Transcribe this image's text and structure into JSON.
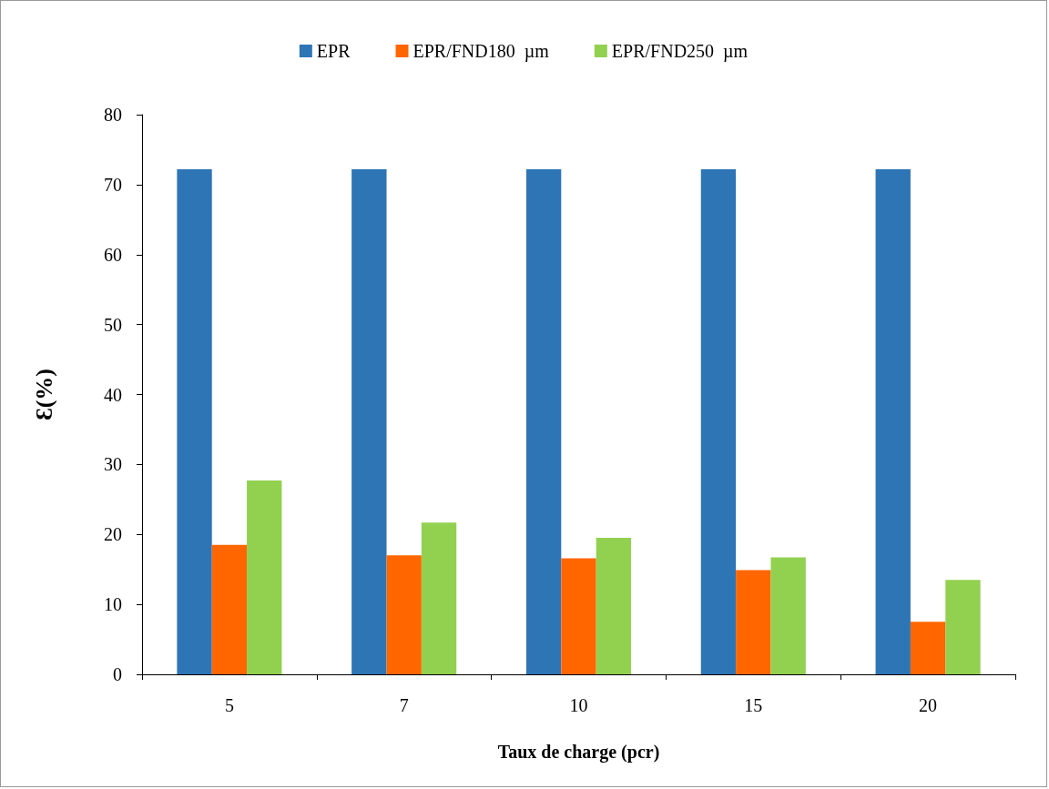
{
  "chart_data": {
    "type": "bar",
    "xlabel": "Taux de charge (pcr)",
    "ylabel": "Ɛ(%)",
    "categories": [
      "5",
      "7",
      "10",
      "15",
      "20"
    ],
    "series": [
      {
        "name": "EPR",
        "color": "#2e75b6",
        "values": [
          72.2,
          72.2,
          72.2,
          72.2,
          72.2
        ]
      },
      {
        "name": "EPR/FND180  µm",
        "color": "#ff6600",
        "values": [
          18.5,
          17.0,
          16.6,
          14.9,
          7.5
        ]
      },
      {
        "name": "EPR/FND250  µm",
        "color": "#92d050",
        "values": [
          27.7,
          21.7,
          19.5,
          16.7,
          13.5
        ]
      }
    ],
    "ylim": [
      0,
      80
    ],
    "yticks": [
      0,
      10,
      20,
      30,
      40,
      50,
      60,
      70,
      80
    ],
    "grid": false,
    "legend": "top"
  }
}
